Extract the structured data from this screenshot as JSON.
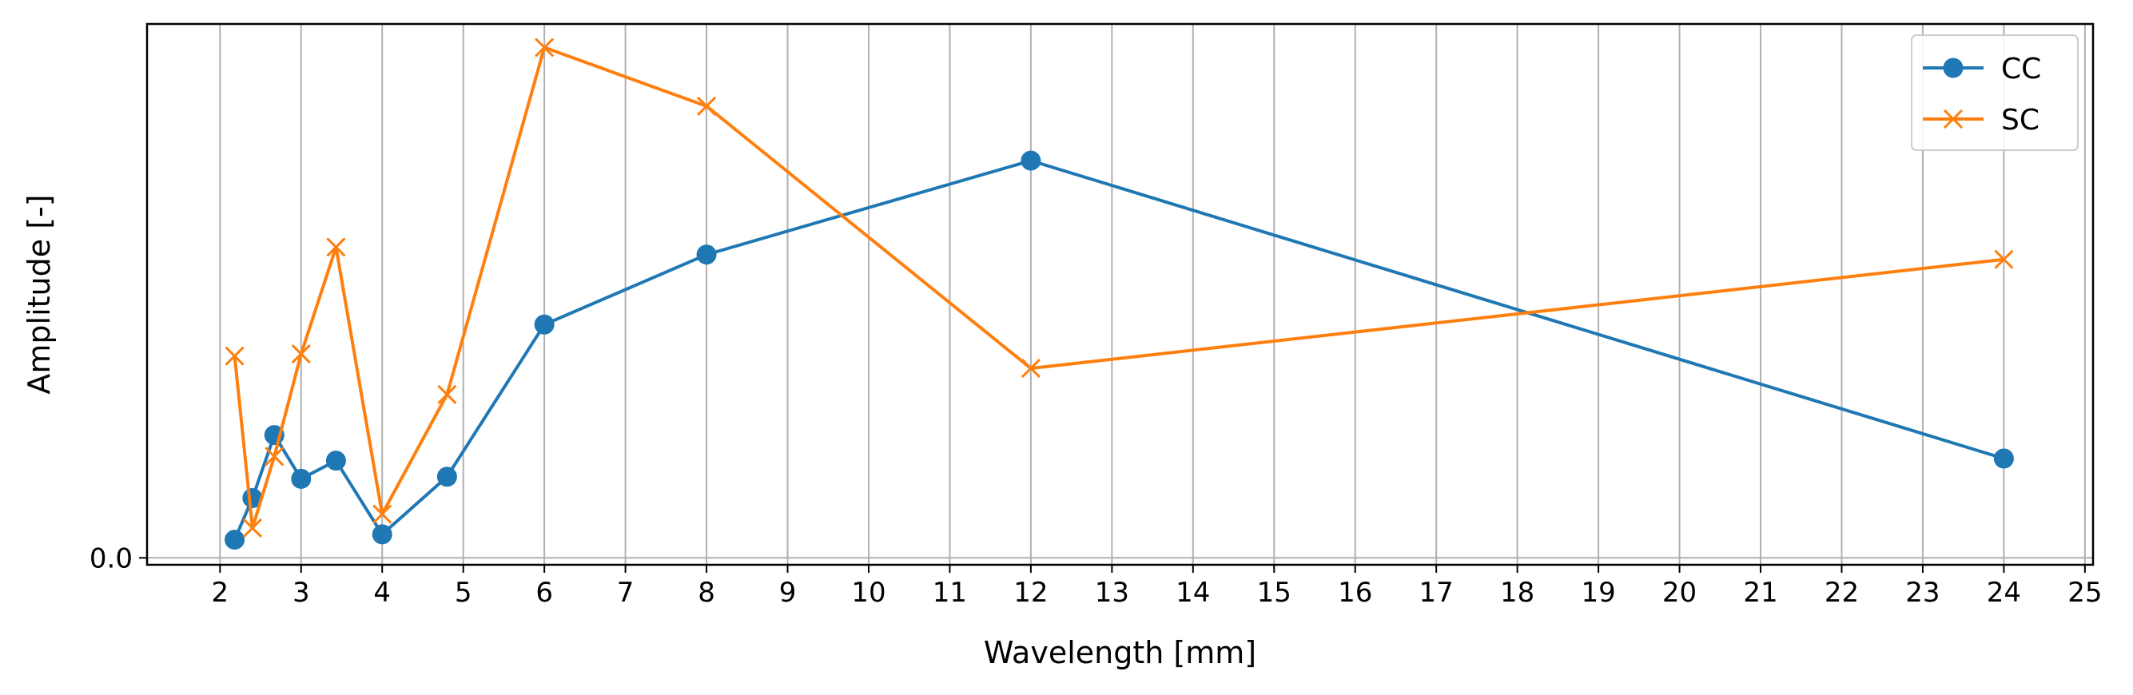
{
  "chart_data": {
    "type": "line",
    "title": "",
    "xlabel": "Wavelength [mm]",
    "ylabel": "Amplitude [-]",
    "xlim": [
      1.1,
      25.1
    ],
    "ylim": [
      -0.013,
      1.0
    ],
    "xticks": [
      "2",
      "3",
      "4",
      "5",
      "6",
      "7",
      "8",
      "9",
      "10",
      "11",
      "12",
      "13",
      "14",
      "15",
      "16",
      "17",
      "18",
      "19",
      "20",
      "21",
      "22",
      "23",
      "24",
      "25"
    ],
    "yticks": [
      "0.0"
    ],
    "grid": "vertical",
    "legend_position": "top-right",
    "series": [
      {
        "name": "CC",
        "color": "#1f77b4",
        "marker": "circle",
        "x": [
          2.18,
          2.4,
          2.67,
          3.0,
          3.43,
          4.0,
          4.8,
          6.0,
          8.0,
          12.0,
          24.0
        ],
        "y": [
          0.034,
          0.112,
          0.23,
          0.148,
          0.182,
          0.044,
          0.152,
          0.437,
          0.568,
          0.744,
          0.186
        ]
      },
      {
        "name": "SC",
        "color": "#ff7f0e",
        "marker": "x",
        "x": [
          2.18,
          2.4,
          2.67,
          3.0,
          3.43,
          4.0,
          4.8,
          6.0,
          8.0,
          12.0,
          24.0
        ],
        "y": [
          0.378,
          0.056,
          0.19,
          0.382,
          0.582,
          0.082,
          0.306,
          0.956,
          0.846,
          0.355,
          0.559
        ]
      }
    ]
  }
}
